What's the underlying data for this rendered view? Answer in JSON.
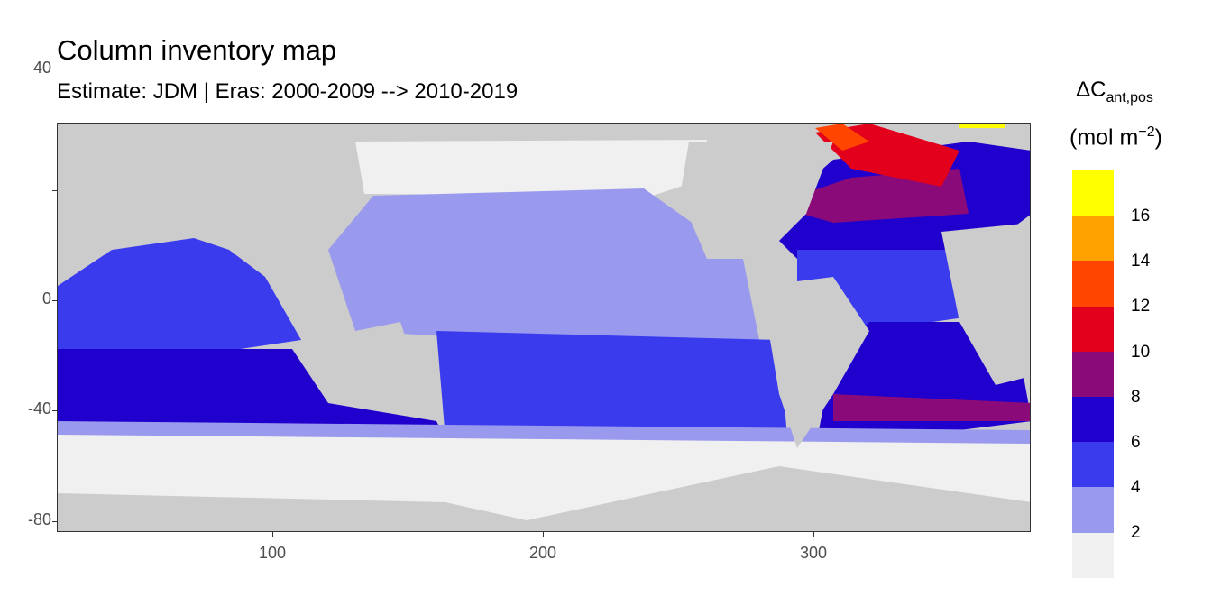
{
  "title": "Column inventory map",
  "subtitle": "Estimate: JDM  | Eras: 2000-2009 --> 2010-2019",
  "legend": {
    "title_main": "ΔC",
    "title_sub": "ant,pos",
    "unit_open": "(mol m",
    "unit_sup": "−2",
    "unit_close": ")",
    "breaks": [
      "2",
      "4",
      "6",
      "8",
      "10",
      "12",
      "14",
      "16"
    ],
    "colors": [
      "#f0f0f0",
      "#9999ee",
      "#3b3bee",
      "#1f00cc",
      "#8b0a7a",
      "#e3001d",
      "#ff4500",
      "#ffa200",
      "#ffff00"
    ]
  },
  "x_axis": {
    "ticks": [
      "100",
      "200",
      "300"
    ],
    "range": [
      20,
      380
    ]
  },
  "y_axis": {
    "ticks": [
      "40",
      "0",
      "-40",
      "-80"
    ],
    "range": [
      -84,
      64
    ]
  },
  "colors": {
    "land": "#cccccc",
    "panel_border": "#333333"
  }
}
